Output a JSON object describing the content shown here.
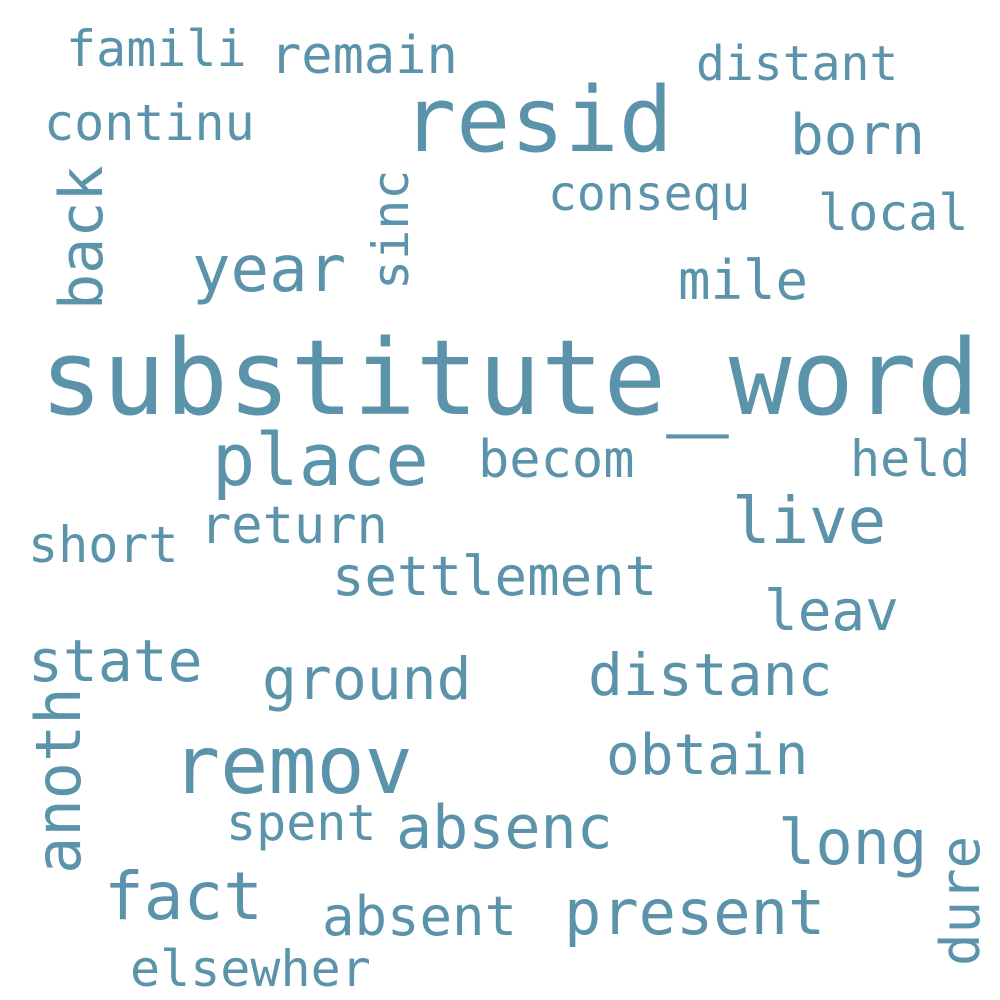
{
  "word_cloud": {
    "color": "#5a93aa",
    "words": {
      "substitute_word": "substitute_word",
      "resid": "resid",
      "remov": "remov",
      "place": "place",
      "year": "year",
      "live": "live",
      "famili": "famili",
      "remain": "remain",
      "distant": "distant",
      "continu": "continu",
      "born": "born",
      "consequ": "consequ",
      "local": "local",
      "sinc": "sinc",
      "back": "back",
      "mile": "mile",
      "becom": "becom",
      "held": "held",
      "short": "short",
      "return": "return",
      "settlement": "settlement",
      "leav": "leav",
      "state": "state",
      "ground": "ground",
      "distanc": "distanc",
      "anoth": "anoth",
      "obtain": "obtain",
      "spent": "spent",
      "absenc": "absenc",
      "long": "long",
      "dure": "dure",
      "fact": "fact",
      "absent": "absent",
      "present": "present",
      "elsewher": "elsewher"
    }
  }
}
